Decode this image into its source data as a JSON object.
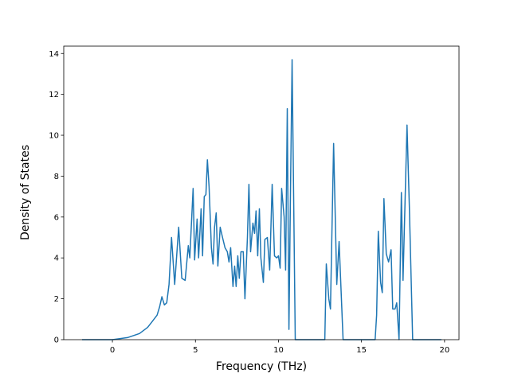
{
  "chart_data": {
    "type": "line",
    "xlabel": "Frequency (THz)",
    "ylabel": "Density of States",
    "x": [
      -1.83,
      0.0,
      0.91,
      1.63,
      2.12,
      2.36,
      2.69,
      2.84,
      2.98,
      3.13,
      3.27,
      3.41,
      3.56,
      3.75,
      3.99,
      4.18,
      4.38,
      4.57,
      4.66,
      4.86,
      4.95,
      5.1,
      5.19,
      5.34,
      5.43,
      5.53,
      5.63,
      5.72,
      5.82,
      5.96,
      6.06,
      6.15,
      6.25,
      6.35,
      6.49,
      6.63,
      6.78,
      6.92,
      7.02,
      7.12,
      7.26,
      7.36,
      7.45,
      7.55,
      7.64,
      7.74,
      7.88,
      7.98,
      8.13,
      8.22,
      8.32,
      8.46,
      8.56,
      8.65,
      8.75,
      8.85,
      8.94,
      9.09,
      9.18,
      9.33,
      9.47,
      9.62,
      9.76,
      9.9,
      10.0,
      10.1,
      10.19,
      10.34,
      10.43,
      10.53,
      10.63,
      10.72,
      10.82,
      11.01,
      12.79,
      12.88,
      13.03,
      13.13,
      13.32,
      13.51,
      13.65,
      13.89,
      15.82,
      15.91,
      16.01,
      16.15,
      16.25,
      16.35,
      16.49,
      16.63,
      16.78,
      16.88,
      17.02,
      17.12,
      17.26,
      17.4,
      17.5,
      17.74,
      17.88,
      18.08,
      19.81
    ],
    "series": [
      {
        "color": "#1f77b4",
        "values": [
          0,
          0,
          0.1,
          0.3,
          0.6,
          0.85,
          1.2,
          1.6,
          2.1,
          1.7,
          1.8,
          2.7,
          5.0,
          2.7,
          5.5,
          3.0,
          2.9,
          4.6,
          4.0,
          7.4,
          3.9,
          5.9,
          4.0,
          6.4,
          4.1,
          7.0,
          7.1,
          8.8,
          7.5,
          4.5,
          3.7,
          5.5,
          6.2,
          3.6,
          5.5,
          5.0,
          4.5,
          4.3,
          3.8,
          4.5,
          2.6,
          3.6,
          2.6,
          4.1,
          3.0,
          4.3,
          4.3,
          2.0,
          5.0,
          7.6,
          4.3,
          5.7,
          5.2,
          6.3,
          4.1,
          6.4,
          4.0,
          2.8,
          4.9,
          5.0,
          3.4,
          7.6,
          4.1,
          4.0,
          4.1,
          3.5,
          7.4,
          6.0,
          3.4,
          11.3,
          0.5,
          7.0,
          13.7,
          0,
          0,
          3.7,
          2.0,
          1.5,
          9.6,
          2.7,
          4.8,
          0,
          0,
          1.2,
          5.3,
          2.8,
          2.3,
          6.9,
          4.2,
          3.8,
          4.4,
          1.5,
          1.5,
          1.8,
          0,
          7.2,
          2.9,
          10.5,
          6.5,
          0,
          0
        ]
      }
    ],
    "xlim": [
      -2.93,
      20.87
    ],
    "ylim": [
      0,
      14.36
    ],
    "xticks": [
      0,
      5,
      10,
      15,
      20
    ],
    "yticks": [
      0,
      2,
      4,
      6,
      8,
      10,
      12,
      14
    ]
  }
}
